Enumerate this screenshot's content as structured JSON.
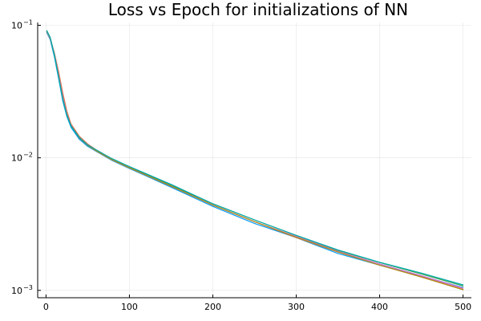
{
  "chart_data": {
    "type": "line",
    "title": "Loss vs Epoch for initializations of NN",
    "xlabel": "",
    "ylabel": "",
    "yscale": "log",
    "xlim": [
      -10,
      510
    ],
    "ylim": [
      0.00088,
      0.105
    ],
    "grid": true,
    "legend": "none",
    "x_ticks": [
      {
        "value": 0,
        "label": "0"
      },
      {
        "value": 100,
        "label": "100"
      },
      {
        "value": 200,
        "label": "200"
      },
      {
        "value": 300,
        "label": "300"
      },
      {
        "value": 400,
        "label": "400"
      },
      {
        "value": 500,
        "label": "500"
      }
    ],
    "y_ticks": [
      {
        "value": 0.001,
        "base": "10",
        "exp": "−3"
      },
      {
        "value": 0.01,
        "base": "10",
        "exp": "−2"
      },
      {
        "value": 0.1,
        "base": "10",
        "exp": "−1"
      }
    ],
    "x": [
      1,
      5,
      10,
      15,
      20,
      25,
      30,
      40,
      50,
      60,
      70,
      80,
      100,
      120,
      150,
      200,
      250,
      300,
      350,
      400,
      450,
      500
    ],
    "series": [
      {
        "color": "#009AFA",
        "values": [
          0.088,
          0.078,
          0.058,
          0.04,
          0.027,
          0.0205,
          0.017,
          0.0138,
          0.0122,
          0.0112,
          0.0103,
          0.0095,
          0.0083,
          0.0073,
          0.006,
          0.0043,
          0.0032,
          0.0025,
          0.0019,
          0.00155,
          0.00128,
          0.00105
        ]
      },
      {
        "color": "#E36F47",
        "values": [
          0.09,
          0.08,
          0.062,
          0.045,
          0.031,
          0.0225,
          0.018,
          0.0145,
          0.0127,
          0.0115,
          0.0106,
          0.0097,
          0.0085,
          0.0075,
          0.0062,
          0.0044,
          0.0033,
          0.0025,
          0.00195,
          0.00155,
          0.00127,
          0.00102
        ]
      },
      {
        "color": "#3EA44E",
        "values": [
          0.091,
          0.081,
          0.06,
          0.042,
          0.028,
          0.021,
          0.0174,
          0.0142,
          0.0124,
          0.0114,
          0.0105,
          0.0097,
          0.0085,
          0.0075,
          0.0062,
          0.0045,
          0.0034,
          0.0026,
          0.002,
          0.00162,
          0.00133,
          0.00108
        ]
      },
      {
        "color": "#C371D2",
        "values": [
          0.089,
          0.079,
          0.061,
          0.043,
          0.029,
          0.0215,
          0.0176,
          0.0141,
          0.0124,
          0.0113,
          0.0104,
          0.0096,
          0.0084,
          0.0074,
          0.0061,
          0.0044,
          0.0033,
          0.00255,
          0.00197,
          0.00158,
          0.00129,
          0.00104
        ]
      },
      {
        "color": "#AC8E18",
        "values": [
          0.09,
          0.08,
          0.06,
          0.042,
          0.028,
          0.0212,
          0.0175,
          0.0141,
          0.0124,
          0.0113,
          0.0104,
          0.0096,
          0.0084,
          0.0074,
          0.0061,
          0.0044,
          0.0033,
          0.00252,
          0.00195,
          0.00155,
          0.00126,
          0.00101
        ]
      },
      {
        "color": "#00A9AD",
        "values": [
          0.091,
          0.081,
          0.06,
          0.041,
          0.028,
          0.021,
          0.0174,
          0.0142,
          0.0125,
          0.0115,
          0.0106,
          0.0098,
          0.0086,
          0.0076,
          0.0063,
          0.0045,
          0.0034,
          0.0026,
          0.00202,
          0.00163,
          0.00135,
          0.0011
        ]
      }
    ]
  }
}
